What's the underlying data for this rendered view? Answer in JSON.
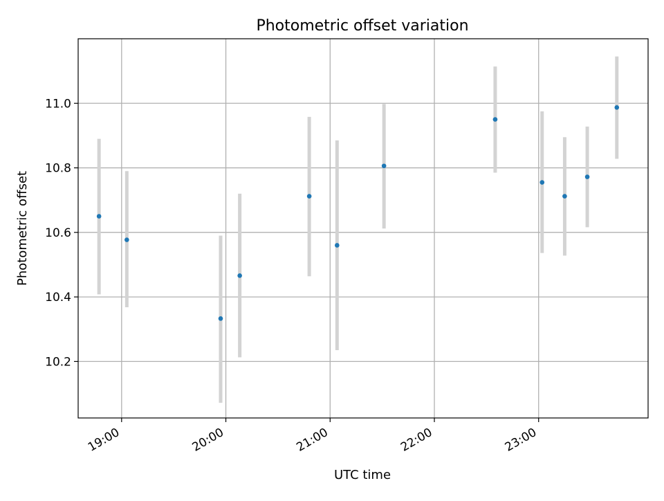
{
  "chart_data": {
    "type": "scatter",
    "title": "Photometric offset variation",
    "xlabel": "UTC time",
    "ylabel": "Photometric offset",
    "x_ticks": [
      {
        "time": "19:00",
        "label": "19:00"
      },
      {
        "time": "20:00",
        "label": "20:00"
      },
      {
        "time": "21:00",
        "label": "21:00"
      },
      {
        "time": "22:00",
        "label": "22:00"
      },
      {
        "time": "23:00",
        "label": "23:00"
      }
    ],
    "y_ticks": [
      {
        "value": 10.2,
        "label": "10.2"
      },
      {
        "value": 10.4,
        "label": "10.4"
      },
      {
        "value": 10.6,
        "label": "10.6"
      },
      {
        "value": 10.8,
        "label": "10.8"
      },
      {
        "value": 11.0,
        "label": "11.0"
      }
    ],
    "xlim": [
      "18:35",
      "24:03"
    ],
    "ylim": [
      10.025,
      11.2
    ],
    "grid": true,
    "colors": {
      "points": "#1f77b4",
      "error_bars": "#d3d3d3",
      "grid": "#b0b0b0"
    },
    "points": [
      {
        "x": "18:47",
        "y": 10.65,
        "err_low": 10.408,
        "err_high": 10.89
      },
      {
        "x": "19:03",
        "y": 10.577,
        "err_low": 10.368,
        "err_high": 10.79
      },
      {
        "x": "19:57",
        "y": 10.333,
        "err_low": 10.072,
        "err_high": 10.59
      },
      {
        "x": "20:08",
        "y": 10.466,
        "err_low": 10.213,
        "err_high": 10.72
      },
      {
        "x": "20:48",
        "y": 10.712,
        "err_low": 10.464,
        "err_high": 10.958
      },
      {
        "x": "21:04",
        "y": 10.56,
        "err_low": 10.235,
        "err_high": 10.885
      },
      {
        "x": "21:31",
        "y": 10.806,
        "err_low": 10.612,
        "err_high": 10.998
      },
      {
        "x": "22:35",
        "y": 10.95,
        "err_low": 10.785,
        "err_high": 11.114
      },
      {
        "x": "23:02",
        "y": 10.755,
        "err_low": 10.536,
        "err_high": 10.975
      },
      {
        "x": "23:15",
        "y": 10.712,
        "err_low": 10.528,
        "err_high": 10.895
      },
      {
        "x": "23:28",
        "y": 10.772,
        "err_low": 10.616,
        "err_high": 10.928
      },
      {
        "x": "23:45",
        "y": 10.987,
        "err_low": 10.828,
        "err_high": 11.145
      }
    ]
  }
}
